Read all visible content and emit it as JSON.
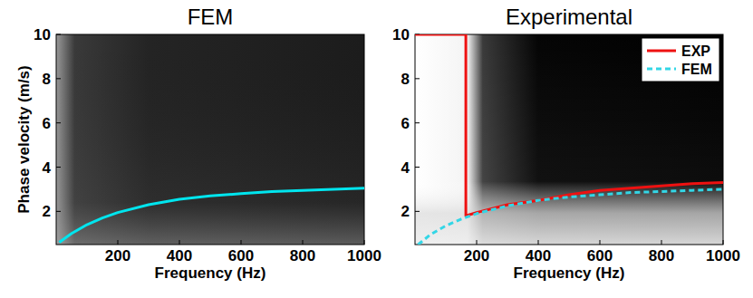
{
  "chart_data": [
    {
      "type": "line",
      "title": "FEM",
      "x_label": "Frequency (Hz)",
      "y_label": "Phase velocity (m/s)",
      "xlim": [
        0,
        1000
      ],
      "ylim": [
        0.5,
        10
      ],
      "xticks": [
        200,
        400,
        600,
        800,
        1000
      ],
      "yticks": [
        2,
        4,
        6,
        8,
        10
      ],
      "grid": false,
      "series": [
        {
          "color": "#00e5ee",
          "line_style": "solid",
          "x": [
            10,
            50,
            100,
            150,
            200,
            300,
            400,
            500,
            600,
            700,
            800,
            900,
            1000
          ],
          "values": [
            0.6,
            1.0,
            1.4,
            1.7,
            1.95,
            2.3,
            2.55,
            2.7,
            2.8,
            2.9,
            2.95,
            3.0,
            3.05
          ]
        }
      ]
    },
    {
      "type": "line",
      "title": "Experimental",
      "x_label": "Frequency (Hz)",
      "xlim": [
        0,
        1000
      ],
      "ylim": [
        0.5,
        10
      ],
      "xticks": [
        200,
        400,
        600,
        800,
        1000
      ],
      "yticks": [
        2,
        4,
        6,
        8,
        10
      ],
      "grid": false,
      "legend": "upper right",
      "series": [
        {
          "name": "EXP",
          "color": "#ee1111",
          "line_style": "solid",
          "x": [
            0,
            165,
            165,
            200,
            300,
            400,
            500,
            600,
            700,
            800,
            900,
            1000
          ],
          "values": [
            10,
            10,
            1.8,
            1.95,
            2.3,
            2.5,
            2.75,
            2.95,
            3.05,
            3.15,
            3.25,
            3.3
          ]
        },
        {
          "name": "FEM",
          "color": "#33d6e6",
          "line_style": "dashed",
          "x": [
            10,
            50,
            100,
            150,
            200,
            300,
            400,
            500,
            600,
            700,
            800,
            900,
            1000
          ],
          "values": [
            0.5,
            0.95,
            1.35,
            1.65,
            1.9,
            2.25,
            2.5,
            2.65,
            2.75,
            2.85,
            2.9,
            2.95,
            3.0
          ]
        }
      ]
    }
  ]
}
